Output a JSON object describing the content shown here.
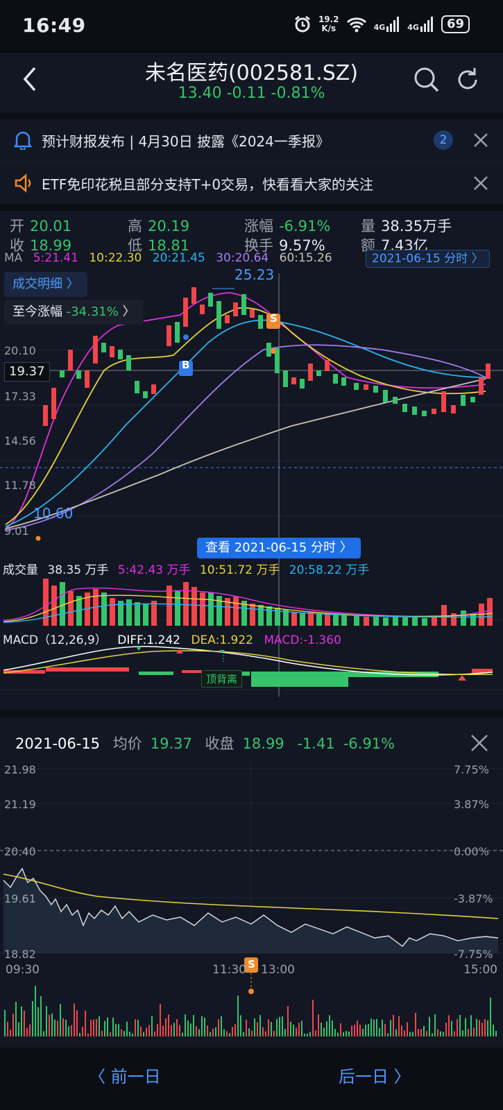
{
  "status": {
    "time": "16:49",
    "net_speed_top": "19.2",
    "net_speed_bottom": "K/s",
    "net1": "4G",
    "net2": "4G",
    "battery": "69"
  },
  "header": {
    "title": "未名医药(002581.SZ)",
    "quote": "13.40 -0.11 -0.81%"
  },
  "notices": [
    {
      "text": "预计财报发布 | 4月30日 披露《2024一季报》",
      "badge": "2"
    },
    {
      "text": "ETF免印花税且部分支持T+0交易，快看看大家的关注"
    }
  ],
  "stats": {
    "open_label": "开",
    "open": "20.01",
    "close_label": "收",
    "close": "18.99",
    "high_label": "高",
    "high": "20.19",
    "low_label": "低",
    "low": "18.81",
    "change_label": "涨幅",
    "change": "-6.91%",
    "turnover_label": "换手",
    "turnover": "9.57%",
    "volume_label": "量",
    "volume": "38.35万手",
    "amount_label": "额",
    "amount": "7.43亿"
  },
  "ma": {
    "label": "MA",
    "ma5": "5:21.41",
    "ma10": "10:22.30",
    "ma20": "20:21.45",
    "ma30": "30:20.64",
    "ma60": "60:15.26"
  },
  "kline": {
    "date_pill": "2021-06-15 分时 〉",
    "detail_btn": "成交明细 〉",
    "since_label": "至今涨幅",
    "since_value": "-34.31%",
    "since_arrow": "〉",
    "peak_label": "25.23",
    "low_label": "10.60",
    "buy_marker": "B",
    "sell_marker": "S",
    "cursor_price": "19.37",
    "y_labels": [
      "20.10",
      "17.33",
      "14.56",
      "11.78",
      "9.01"
    ],
    "view_btn": "查看 2021-06-15 分时 〉"
  },
  "volume": {
    "label": "成交量",
    "v": "38.35 万手",
    "v5": "5:42.43 万手",
    "v10": "10:51.72 万手",
    "v20": "20:58.22 万手"
  },
  "macd": {
    "label": "MACD（12,26,9）",
    "diff": "DIFF:1.242",
    "dea": "DEA:1.922",
    "macd": "MACD:-1.360",
    "divergence": "顶背离"
  },
  "intraday": {
    "date": "2021-06-15",
    "avg_label": "均价",
    "avg": "19.37",
    "close_label": "收盘",
    "close": "18.99",
    "chg": "-1.41",
    "pct": "-6.91%",
    "left_axis": [
      "21.98",
      "21.19",
      "20.40",
      "19.61",
      "18.82"
    ],
    "right_axis": [
      "7.75%",
      "3.87%",
      "0.00%",
      "-3.87%",
      "-7.75%"
    ],
    "times": [
      "09:30",
      "11:30",
      "13:00",
      "15:00"
    ],
    "sell_marker": "S"
  },
  "footer": {
    "prev": "〈 前一日",
    "next": "后一日 〉"
  },
  "colors": {
    "up": "#f0464a",
    "down": "#35c46b",
    "accent": "#3f8cff",
    "ma5": "#e030e0",
    "ma10": "#e8d23a",
    "ma20": "#2ab4f0",
    "ma30": "#a67cf0",
    "ma60": "#c9c1b8"
  }
}
